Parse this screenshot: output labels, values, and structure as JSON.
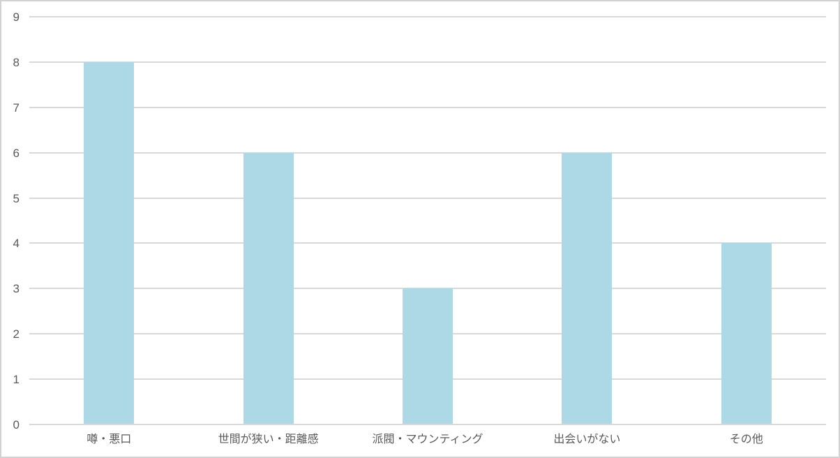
{
  "chart_data": {
    "type": "bar",
    "title": "",
    "xlabel": "",
    "ylabel": "",
    "categories": [
      "噂・悪口",
      "世間が狭い・距離感",
      "派閥・マウンティング",
      "出会いがない",
      "その他"
    ],
    "values": [
      8,
      6,
      3,
      6,
      4
    ],
    "ylim": [
      0,
      9
    ],
    "yticks": [
      0,
      1,
      2,
      3,
      4,
      5,
      6,
      7,
      8,
      9
    ],
    "grid": true,
    "legend_position": "none",
    "colors": {
      "bar_fill": "#add8e6",
      "gridline": "#d9d9d9",
      "axis_text": "#595959",
      "frame_border": "#d2d2d2",
      "background": "#ffffff"
    }
  }
}
